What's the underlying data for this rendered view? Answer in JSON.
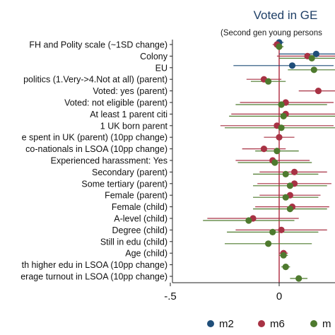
{
  "chart_data": {
    "type": "scatter",
    "title": "Voted in GE",
    "subtitle": "(Second gen young persons",
    "xlabel": "",
    "ylabel": "",
    "xlim": [
      -0.5,
      0.25
    ],
    "xticks": [
      {
        "value": -0.5,
        "label": "-.5"
      },
      {
        "value": 0,
        "label": "0"
      }
    ],
    "reference_line": 0,
    "reference_color": "#b3364a",
    "grid": false,
    "legend_position": "bottom",
    "categories": [
      "FH and Polity scale (~1SD change)",
      "Colony",
      "EU",
      "politics (1.Very->4.Not at all) (parent)",
      "Voted: yes (parent)",
      "Voted: not eligible (parent)",
      "At least 1 parent citi",
      "1 UK born parent",
      "e spent in UK (parent) (10pp change)",
      "co-nationals in LSOA (10pp change)",
      "Experienced harassment: Yes",
      "Secondary (parent)",
      "Some tertiary (parent)",
      "Female (parent)",
      "Female (child)",
      "A-level (child)",
      "Degree (child)",
      "Still in edu (child)",
      "Age (child)",
      "th higher edu in LSOA (10pp change)",
      "erage turnout in LSOA (10pp change)"
    ],
    "series": [
      {
        "name": "m2",
        "color": "#1f4e79",
        "estimates": [
          0.0,
          0.17,
          0.06,
          null,
          null,
          null,
          null,
          null,
          null,
          null,
          null,
          null,
          null,
          null,
          null,
          null,
          null,
          null,
          null,
          null,
          null
        ],
        "ci_low": [
          -0.02,
          0.0,
          -0.21,
          null,
          null,
          null,
          null,
          null,
          null,
          null,
          null,
          null,
          null,
          null,
          null,
          null,
          null,
          null,
          null,
          null,
          null
        ],
        "ci_high": [
          0.02,
          0.3,
          0.25,
          null,
          null,
          null,
          null,
          null,
          null,
          null,
          null,
          null,
          null,
          null,
          null,
          null,
          null,
          null,
          null,
          null,
          null
        ]
      },
      {
        "name": "m6",
        "color": "#a83244",
        "estimates": [
          -0.01,
          0.13,
          null,
          -0.07,
          0.18,
          0.03,
          0.03,
          -0.01,
          0.0,
          -0.07,
          -0.03,
          0.07,
          0.07,
          0.05,
          0.06,
          -0.12,
          0.01,
          null,
          0.02,
          null,
          null
        ],
        "ci_low": [
          -0.03,
          -0.01,
          null,
          -0.15,
          0.09,
          -0.18,
          -0.22,
          -0.27,
          -0.07,
          -0.17,
          -0.2,
          -0.09,
          -0.1,
          -0.09,
          -0.11,
          -0.33,
          -0.2,
          null,
          0.0,
          null,
          null
        ],
        "ci_high": [
          0.01,
          0.28,
          null,
          0.01,
          0.3,
          0.25,
          0.27,
          0.25,
          0.07,
          0.03,
          0.14,
          0.22,
          0.24,
          0.19,
          0.23,
          0.09,
          0.22,
          null,
          0.04,
          null,
          null
        ]
      },
      {
        "name": "m",
        "color": "#4e7a2e",
        "estimates": [
          0.0,
          0.15,
          0.16,
          -0.05,
          null,
          0.01,
          0.02,
          0.01,
          null,
          -0.01,
          -0.02,
          0.03,
          0.05,
          0.03,
          0.05,
          -0.14,
          -0.03,
          -0.05,
          0.02,
          0.03,
          0.09
        ],
        "ci_low": [
          -0.02,
          0.0,
          0.04,
          -0.13,
          null,
          -0.2,
          -0.23,
          -0.25,
          null,
          -0.11,
          -0.19,
          -0.12,
          -0.12,
          -0.12,
          -0.12,
          -0.35,
          -0.24,
          -0.25,
          0.0,
          0.01,
          0.05
        ],
        "ci_high": [
          0.02,
          0.3,
          0.28,
          0.03,
          null,
          0.22,
          0.27,
          0.27,
          null,
          0.09,
          0.15,
          0.18,
          0.22,
          0.18,
          0.22,
          0.07,
          0.18,
          0.15,
          0.04,
          0.05,
          0.13
        ]
      }
    ]
  }
}
